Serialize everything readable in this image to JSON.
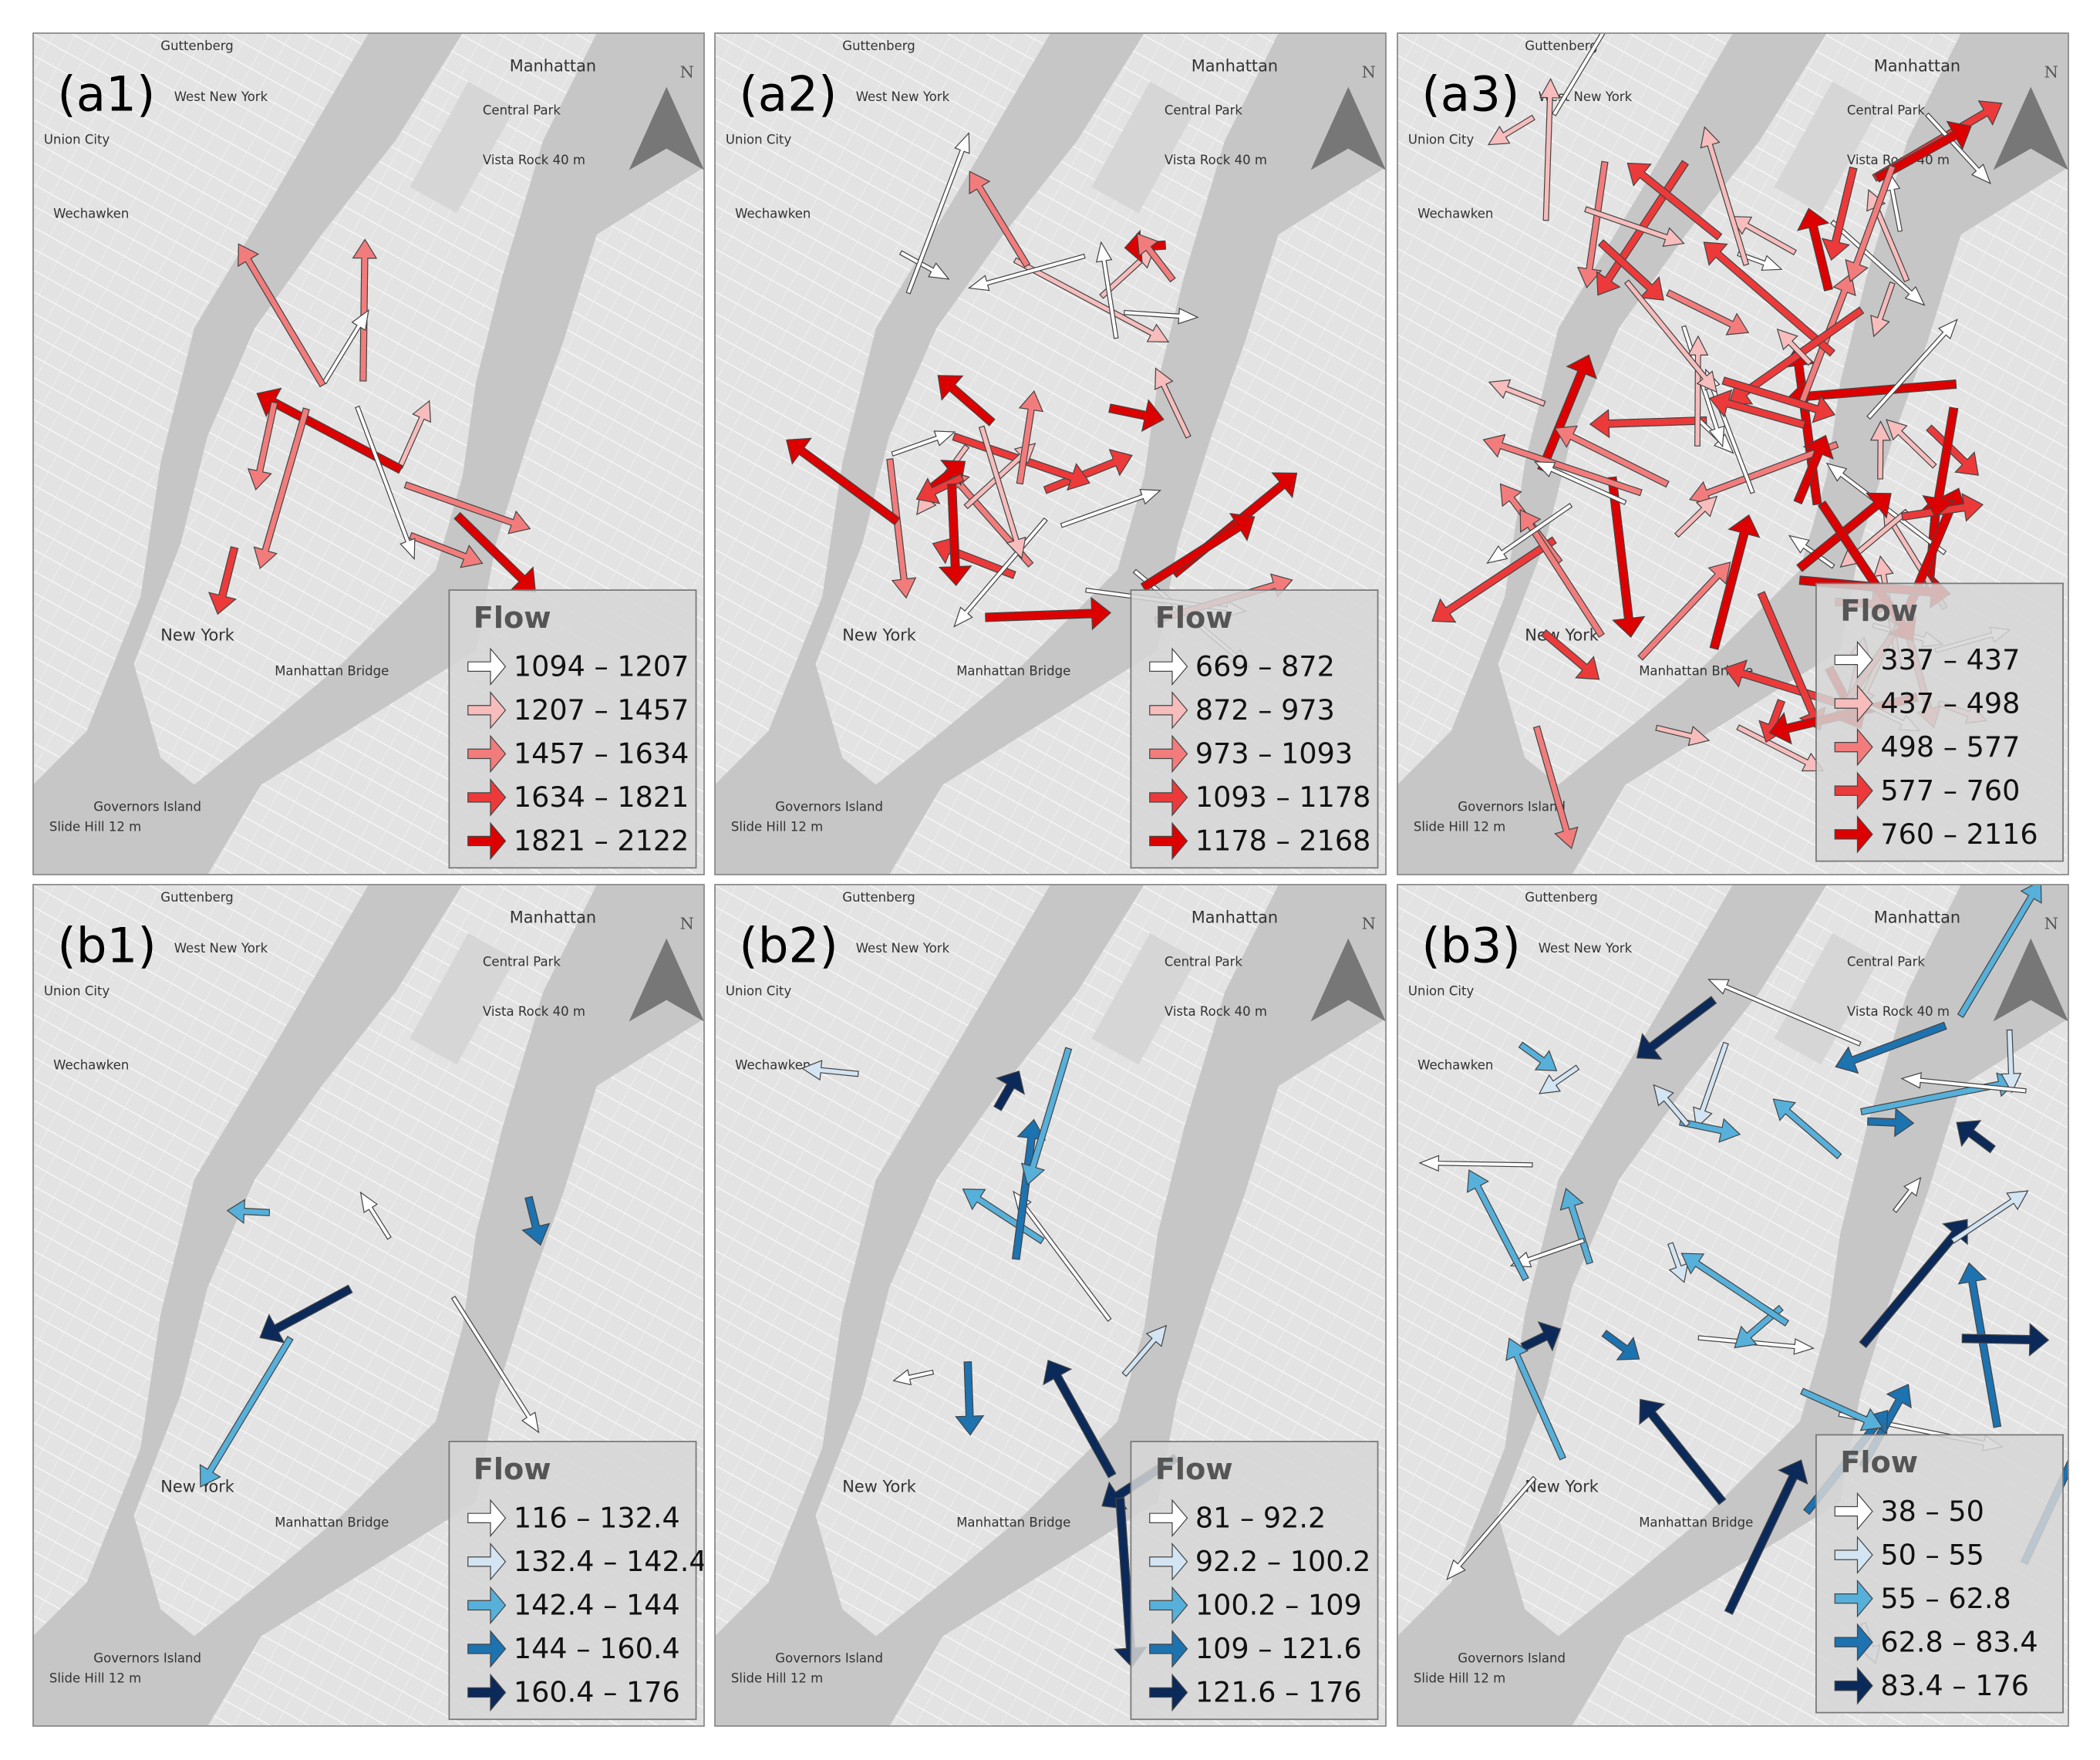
{
  "north_label": "N",
  "map_labels": [
    "Guttenberg",
    "Manhattan",
    "West New York",
    "Union City",
    "Central Park",
    "Vista Rock 40 m",
    "Wechawken",
    "New York",
    "Manhattan Bridge",
    "Governors Island",
    "Slide Hill 12 m"
  ],
  "panels": [
    {
      "label": "(a1)",
      "legend": {
        "title": "Flow",
        "classes": [
          {
            "label": "1094 – 1207",
            "color": "#ffffff"
          },
          {
            "label": "1207 – 1457",
            "color": "#f7bcbc"
          },
          {
            "label": "1457 – 1634",
            "color": "#f27c7c"
          },
          {
            "label": "1634 – 1821",
            "color": "#ec3a3a"
          },
          {
            "label": "1821 – 2122",
            "color": "#dd0000"
          }
        ]
      }
    },
    {
      "label": "(a2)",
      "legend": {
        "title": "Flow",
        "classes": [
          {
            "label": "669 – 872",
            "color": "#ffffff"
          },
          {
            "label": "872 – 973",
            "color": "#f7bcbc"
          },
          {
            "label": "973 – 1093",
            "color": "#f27c7c"
          },
          {
            "label": "1093 – 1178",
            "color": "#ec3a3a"
          },
          {
            "label": "1178 – 2168",
            "color": "#dd0000"
          }
        ]
      }
    },
    {
      "label": "(a3)",
      "legend": {
        "title": "Flow",
        "classes": [
          {
            "label": "337 – 437",
            "color": "#ffffff"
          },
          {
            "label": "437 – 498",
            "color": "#f7bcbc"
          },
          {
            "label": "498 – 577",
            "color": "#f27c7c"
          },
          {
            "label": "577 – 760",
            "color": "#ec3a3a"
          },
          {
            "label": "760 – 2116",
            "color": "#dd0000"
          }
        ]
      }
    },
    {
      "label": "(b1)",
      "legend": {
        "title": "Flow",
        "classes": [
          {
            "label": "116 – 132.4",
            "color": "#ffffff"
          },
          {
            "label": "132.4 – 142.4",
            "color": "#d3e4f3"
          },
          {
            "label": "142.4 – 144",
            "color": "#56b0da"
          },
          {
            "label": "144 – 160.4",
            "color": "#1d72b0"
          },
          {
            "label": "160.4 – 176",
            "color": "#0b2a5a"
          }
        ]
      }
    },
    {
      "label": "(b2)",
      "legend": {
        "title": "Flow",
        "classes": [
          {
            "label": "81 – 92.2",
            "color": "#ffffff"
          },
          {
            "label": "92.2 – 100.2",
            "color": "#d3e4f3"
          },
          {
            "label": "100.2 – 109",
            "color": "#56b0da"
          },
          {
            "label": "109 – 121.6",
            "color": "#1d72b0"
          },
          {
            "label": "121.6 – 176",
            "color": "#0b2a5a"
          }
        ]
      }
    },
    {
      "label": "(b3)",
      "legend": {
        "title": "Flow",
        "classes": [
          {
            "label": "38 – 50",
            "color": "#ffffff"
          },
          {
            "label": "50 – 55",
            "color": "#d3e4f3"
          },
          {
            "label": "55 – 62.8",
            "color": "#56b0da"
          },
          {
            "label": "62.8 – 83.4",
            "color": "#1d72b0"
          },
          {
            "label": "83.4 – 176",
            "color": "#0b2a5a"
          }
        ]
      }
    }
  ]
}
